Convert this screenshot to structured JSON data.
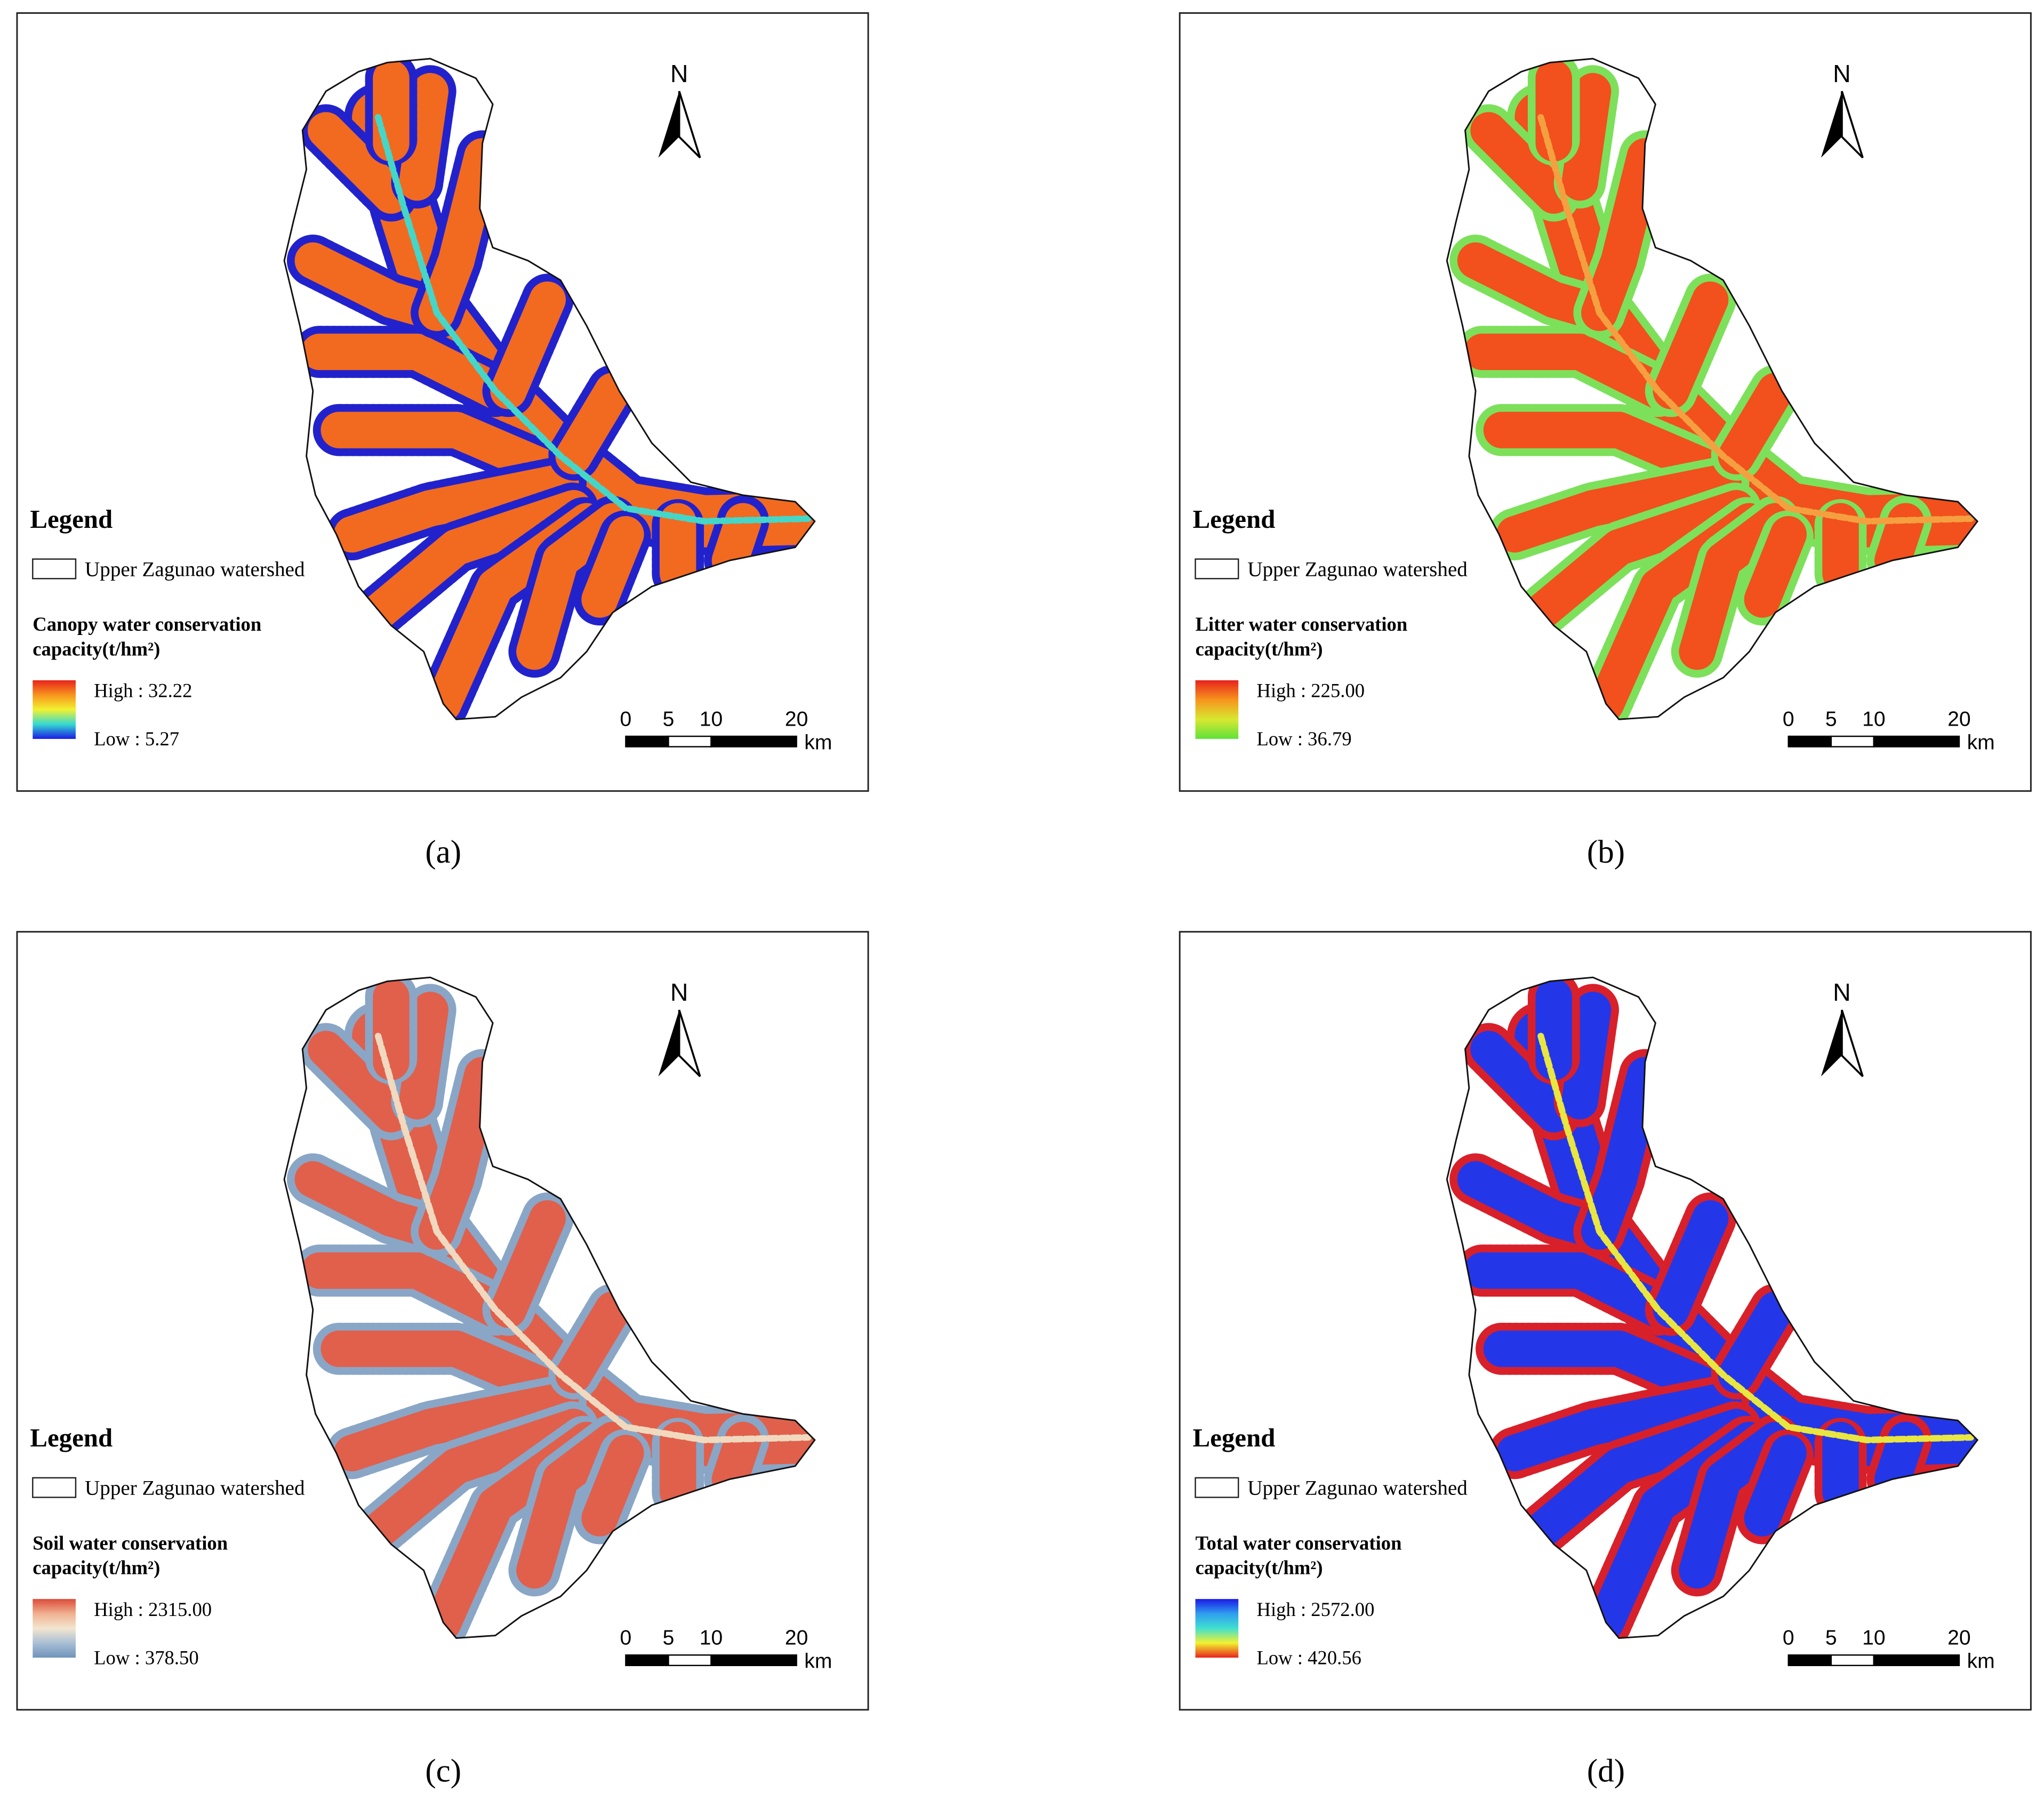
{
  "panels": [
    {
      "label": "(a)",
      "legend_title": "Legend",
      "watershed": "Upper Zagunao watershed",
      "layer_title": [
        "Canopy water conservation",
        "capacity(t/hm²)"
      ],
      "high": "High : 32.22",
      "low": "Low : 5.27",
      "colors": [
        "#e8231c",
        "#f7941d",
        "#f2f230",
        "#35d9d0",
        "#1a1ae6"
      ],
      "fill_color": "#f26a1f",
      "edge_color": "#2222cc",
      "valley_color": "#45d6c8",
      "north": "N",
      "scale_ticks": [
        0,
        5,
        10,
        20
      ],
      "scale_unit": "km"
    },
    {
      "label": "(b)",
      "legend_title": "Legend",
      "watershed": "Upper Zagunao watershed",
      "layer_title": [
        "Litter water conservation",
        "capacity(t/hm²)"
      ],
      "high": "High : 225.00",
      "low": "Low : 36.79",
      "colors": [
        "#e8231c",
        "#f7941d",
        "#d8e830",
        "#5fe23a"
      ],
      "fill_color": "#f2501c",
      "edge_color": "#7de05a",
      "valley_color": "#f5a040",
      "north": "N",
      "scale_ticks": [
        0,
        5,
        10,
        20
      ],
      "scale_unit": "km"
    },
    {
      "label": "(c)",
      "legend_title": "Legend",
      "watershed": "Upper Zagunao watershed",
      "layer_title": [
        "Soil water conservation",
        "capacity(t/hm²)"
      ],
      "high": "High : 2315.00",
      "low": "Low : 378.50",
      "colors": [
        "#dc4c3a",
        "#f0b090",
        "#f3e6cf",
        "#a9bfd6",
        "#6f93bb"
      ],
      "fill_color": "#e0604c",
      "edge_color": "#8aa6c6",
      "valley_color": "#f1d9bf",
      "north": "N",
      "scale_ticks": [
        0,
        5,
        10,
        20
      ],
      "scale_unit": "km"
    },
    {
      "label": "(d)",
      "legend_title": "Legend",
      "watershed": "Upper Zagunao watershed",
      "layer_title": [
        "Total water conservation",
        "capacity(t/hm²)"
      ],
      "high": "High : 2572.00",
      "low": "Low : 420.56",
      "colors": [
        "#1a1ae6",
        "#2f9ef0",
        "#40e0d0",
        "#f2f230",
        "#e8231c"
      ],
      "fill_color": "#2437e8",
      "edge_color": "#d8202a",
      "valley_color": "#e8e640",
      "north": "N",
      "scale_ticks": [
        0,
        5,
        10,
        20
      ],
      "scale_unit": "km"
    }
  ]
}
